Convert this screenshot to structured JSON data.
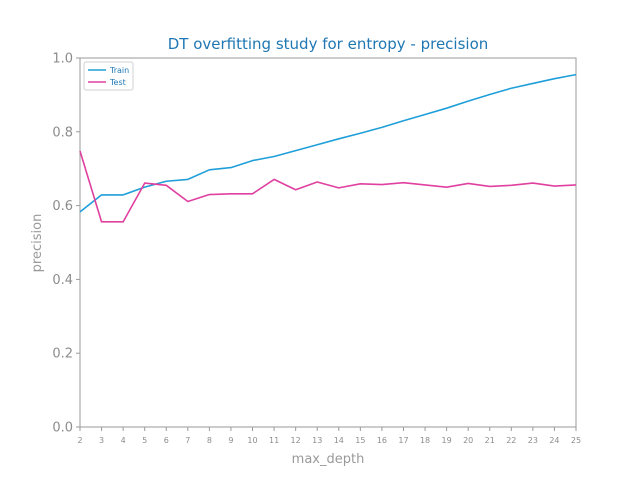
{
  "chart_data": {
    "type": "line",
    "title": "DT overfitting study for entropy - precision",
    "xlabel": "max_depth",
    "ylabel": "precision",
    "x": [
      2,
      3,
      4,
      5,
      6,
      7,
      8,
      9,
      10,
      11,
      12,
      13,
      14,
      15,
      16,
      17,
      18,
      19,
      20,
      21,
      22,
      23,
      24,
      25
    ],
    "xlim": [
      2,
      25
    ],
    "ylim": [
      0.0,
      1.0
    ],
    "yticks": [
      "0.0",
      "0.2",
      "0.4",
      "0.6",
      "0.8",
      "1.0"
    ],
    "grid": false,
    "legend_position": "upper-left",
    "series": [
      {
        "name": "Train",
        "color": "#1f9fd9",
        "values": [
          0.583,
          0.629,
          0.629,
          0.65,
          0.666,
          0.671,
          0.697,
          0.703,
          0.722,
          0.733,
          0.749,
          0.765,
          0.781,
          0.796,
          0.812,
          0.83,
          0.847,
          0.864,
          0.883,
          0.901,
          0.918,
          0.931,
          0.944,
          0.955
        ]
      },
      {
        "name": "Test",
        "color": "#e040a0",
        "values": [
          0.748,
          0.556,
          0.556,
          0.661,
          0.655,
          0.611,
          0.63,
          0.632,
          0.632,
          0.671,
          0.643,
          0.664,
          0.648,
          0.659,
          0.657,
          0.662,
          0.656,
          0.65,
          0.66,
          0.652,
          0.655,
          0.661,
          0.653,
          0.656
        ]
      }
    ]
  }
}
